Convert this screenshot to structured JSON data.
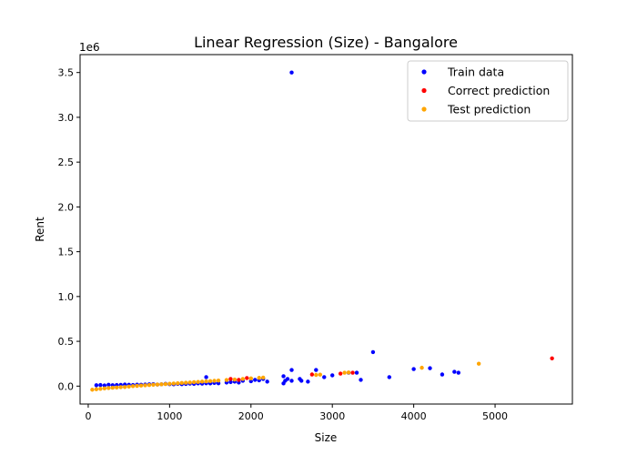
{
  "chart_data": {
    "type": "scatter",
    "title": "Linear Regression (Size) - Bangalore",
    "xlabel": "Size",
    "ylabel": "Rent",
    "y_offset_label": "1e6",
    "xlim": [
      -100,
      5950
    ],
    "ylim": [
      -200000,
      3700000
    ],
    "xticks": [
      {
        "value": 0,
        "label": "0"
      },
      {
        "value": 1000,
        "label": "1000"
      },
      {
        "value": 2000,
        "label": "2000"
      },
      {
        "value": 3000,
        "label": "3000"
      },
      {
        "value": 4000,
        "label": "4000"
      },
      {
        "value": 5000,
        "label": "5000"
      }
    ],
    "yticks": [
      {
        "value": 0,
        "label": "0.0"
      },
      {
        "value": 500000,
        "label": "0.5"
      },
      {
        "value": 1000000,
        "label": "1.0"
      },
      {
        "value": 1500000,
        "label": "1.5"
      },
      {
        "value": 2000000,
        "label": "2.0"
      },
      {
        "value": 2500000,
        "label": "2.5"
      },
      {
        "value": 3000000,
        "label": "3.0"
      },
      {
        "value": 3500000,
        "label": "3.5"
      }
    ],
    "grid": false,
    "legend_position": "top-right",
    "series": [
      {
        "name": "Train data",
        "color": "#0000ff",
        "points": [
          [
            100,
            10000
          ],
          [
            150,
            12000
          ],
          [
            200,
            8000
          ],
          [
            250,
            15000
          ],
          [
            300,
            10000
          ],
          [
            350,
            12000
          ],
          [
            400,
            14000
          ],
          [
            450,
            18000
          ],
          [
            500,
            15000
          ],
          [
            550,
            12000
          ],
          [
            600,
            16000
          ],
          [
            650,
            15000
          ],
          [
            700,
            18000
          ],
          [
            750,
            20000
          ],
          [
            800,
            22000
          ],
          [
            850,
            18000
          ],
          [
            900,
            20000
          ],
          [
            950,
            25000
          ],
          [
            1000,
            22000
          ],
          [
            1050,
            20000
          ],
          [
            1100,
            25000
          ],
          [
            1150,
            22000
          ],
          [
            1200,
            24000
          ],
          [
            1250,
            28000
          ],
          [
            1300,
            25000
          ],
          [
            1350,
            30000
          ],
          [
            1400,
            28000
          ],
          [
            1450,
            32000
          ],
          [
            1500,
            30000
          ],
          [
            1550,
            35000
          ],
          [
            1600,
            32000
          ],
          [
            1450,
            100000
          ],
          [
            1700,
            40000
          ],
          [
            1750,
            45000
          ],
          [
            1800,
            50000
          ],
          [
            1850,
            40000
          ],
          [
            1900,
            60000
          ],
          [
            2000,
            55000
          ],
          [
            2050,
            70000
          ],
          [
            2100,
            65000
          ],
          [
            2150,
            80000
          ],
          [
            2200,
            50000
          ],
          [
            2400,
            30000
          ],
          [
            2400,
            110000
          ],
          [
            2420,
            60000
          ],
          [
            2450,
            80000
          ],
          [
            2500,
            180000
          ],
          [
            2500,
            60000
          ],
          [
            2600,
            80000
          ],
          [
            2620,
            60000
          ],
          [
            2700,
            50000
          ],
          [
            2800,
            180000
          ],
          [
            2900,
            100000
          ],
          [
            3000,
            120000
          ],
          [
            3200,
            150000
          ],
          [
            3300,
            150000
          ],
          [
            3350,
            70000
          ],
          [
            3500,
            380000
          ],
          [
            3700,
            100000
          ],
          [
            4000,
            190000
          ],
          [
            4200,
            200000
          ],
          [
            4350,
            130000
          ],
          [
            4500,
            160000
          ],
          [
            4550,
            150000
          ],
          [
            2500,
            3500000
          ]
        ]
      },
      {
        "name": "Correct prediction",
        "color": "#ff0000",
        "points": [
          [
            1750,
            80000
          ],
          [
            1850,
            70000
          ],
          [
            1950,
            90000
          ],
          [
            2750,
            130000
          ],
          [
            3100,
            140000
          ],
          [
            3250,
            150000
          ],
          [
            5700,
            310000
          ]
        ]
      },
      {
        "name": "Test prediction",
        "color": "#ffa500",
        "points": [
          [
            50,
            -40000
          ],
          [
            100,
            -35000
          ],
          [
            150,
            -30000
          ],
          [
            200,
            -25000
          ],
          [
            250,
            -22000
          ],
          [
            300,
            -18000
          ],
          [
            350,
            -15000
          ],
          [
            400,
            -12000
          ],
          [
            450,
            -10000
          ],
          [
            500,
            -5000
          ],
          [
            550,
            0
          ],
          [
            600,
            3000
          ],
          [
            650,
            6000
          ],
          [
            700,
            9000
          ],
          [
            750,
            12000
          ],
          [
            800,
            15000
          ],
          [
            850,
            18000
          ],
          [
            900,
            20000
          ],
          [
            950,
            23000
          ],
          [
            1000,
            26000
          ],
          [
            1050,
            29000
          ],
          [
            1100,
            32000
          ],
          [
            1150,
            35000
          ],
          [
            1200,
            38000
          ],
          [
            1250,
            41000
          ],
          [
            1300,
            44000
          ],
          [
            1350,
            47000
          ],
          [
            1400,
            50000
          ],
          [
            1450,
            53000
          ],
          [
            1500,
            56000
          ],
          [
            1550,
            59000
          ],
          [
            1600,
            62000
          ],
          [
            1700,
            68000
          ],
          [
            1800,
            74000
          ],
          [
            1900,
            80000
          ],
          [
            2000,
            86000
          ],
          [
            2100,
            92000
          ],
          [
            2150,
            95000
          ],
          [
            2800,
            125000
          ],
          [
            2850,
            128000
          ],
          [
            3150,
            150000
          ],
          [
            3200,
            152000
          ],
          [
            4100,
            205000
          ],
          [
            4800,
            250000
          ]
        ]
      }
    ]
  }
}
